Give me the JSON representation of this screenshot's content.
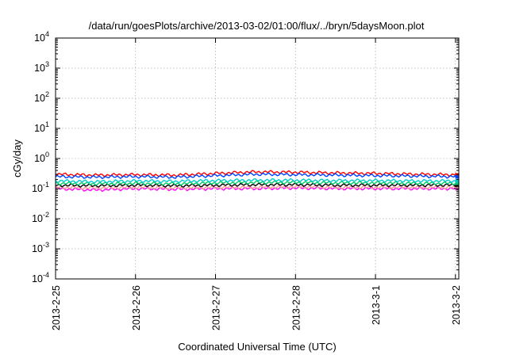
{
  "chart_data": {
    "type": "line",
    "title": "/data/run/goesPlots/archive/2013-03-02/01:00/flux/../bryn/5daysMoon.plot",
    "xlabel": "Coordinated Universal Time (UTC)",
    "ylabel": "cGy/day",
    "yscale": "log",
    "ylim": [
      0.0001,
      10000
    ],
    "xlim": [
      "2013-02-25",
      "2013-03-02T01:00"
    ],
    "grid": true,
    "legend": "none",
    "y_ticks": [
      {
        "base": "10",
        "exp": "-4",
        "value": 0.0001
      },
      {
        "base": "10",
        "exp": "-3",
        "value": 0.001
      },
      {
        "base": "10",
        "exp": "-2",
        "value": 0.01
      },
      {
        "base": "10",
        "exp": "-1",
        "value": 0.1
      },
      {
        "base": "10",
        "exp": "0",
        "value": 1
      },
      {
        "base": "10",
        "exp": "1",
        "value": 10
      },
      {
        "base": "10",
        "exp": "2",
        "value": 100
      },
      {
        "base": "10",
        "exp": "3",
        "value": 1000
      },
      {
        "base": "10",
        "exp": "4",
        "value": 10000
      }
    ],
    "x_ticks": [
      {
        "label": "2013-2-25",
        "value": "2013-02-25"
      },
      {
        "label": "2013-2-26",
        "value": "2013-02-26"
      },
      {
        "label": "2013-2-27",
        "value": "2013-02-27"
      },
      {
        "label": "2013-2-28",
        "value": "2013-02-28"
      },
      {
        "label": "2013-3-1",
        "value": "2013-03-01"
      },
      {
        "label": "2013-3-2",
        "value": "2013-03-02"
      }
    ],
    "series": [
      {
        "color": "#ff00ff",
        "x": [
          "2013-02-25",
          "2013-02-25T12:00",
          "2013-02-26",
          "2013-02-26T12:00",
          "2013-02-27",
          "2013-02-27T12:00",
          "2013-02-28",
          "2013-02-28T12:00",
          "2013-03-01",
          "2013-03-01T12:00",
          "2013-03-02",
          "2013-03-02T01:00"
        ],
        "values": [
          0.1,
          0.09,
          0.1,
          0.095,
          0.1,
          0.1,
          0.105,
          0.1,
          0.1,
          0.1,
          0.1,
          0.1
        ]
      },
      {
        "color": "#ff9999",
        "x": [
          "2013-02-25",
          "2013-02-25T12:00",
          "2013-02-26",
          "2013-02-26T12:00",
          "2013-02-27",
          "2013-02-27T12:00",
          "2013-02-28",
          "2013-02-28T12:00",
          "2013-03-01",
          "2013-03-01T12:00",
          "2013-03-02",
          "2013-03-02T01:00"
        ],
        "values": [
          0.11,
          0.105,
          0.11,
          0.105,
          0.11,
          0.11,
          0.115,
          0.11,
          0.11,
          0.11,
          0.11,
          0.11
        ]
      },
      {
        "color": "#000000",
        "x": [
          "2013-02-25",
          "2013-02-25T12:00",
          "2013-02-26",
          "2013-02-26T12:00",
          "2013-02-27",
          "2013-02-27T12:00",
          "2013-02-28",
          "2013-02-28T12:00",
          "2013-03-01",
          "2013-03-01T12:00",
          "2013-03-02",
          "2013-03-02T01:00"
        ],
        "values": [
          0.13,
          0.125,
          0.13,
          0.125,
          0.13,
          0.135,
          0.135,
          0.13,
          0.13,
          0.13,
          0.13,
          0.13
        ]
      },
      {
        "color": "#00cc66",
        "x": [
          "2013-02-25",
          "2013-02-25T12:00",
          "2013-02-26",
          "2013-02-26T12:00",
          "2013-02-27",
          "2013-02-27T12:00",
          "2013-02-28",
          "2013-02-28T12:00",
          "2013-03-01",
          "2013-03-01T12:00",
          "2013-03-02",
          "2013-03-02T01:00"
        ],
        "values": [
          0.15,
          0.145,
          0.15,
          0.145,
          0.155,
          0.16,
          0.16,
          0.155,
          0.155,
          0.15,
          0.15,
          0.15
        ]
      },
      {
        "color": "#00cccc",
        "x": [
          "2013-02-25",
          "2013-02-25T12:00",
          "2013-02-26",
          "2013-02-26T12:00",
          "2013-02-27",
          "2013-02-27T12:00",
          "2013-02-28",
          "2013-02-28T12:00",
          "2013-03-01",
          "2013-03-01T12:00",
          "2013-03-02",
          "2013-03-02T01:00"
        ],
        "values": [
          0.18,
          0.17,
          0.18,
          0.175,
          0.185,
          0.19,
          0.19,
          0.185,
          0.185,
          0.18,
          0.18,
          0.18
        ]
      },
      {
        "color": "#ff0000",
        "x": [
          "2013-02-25",
          "2013-02-25T12:00",
          "2013-02-26",
          "2013-02-26T12:00",
          "2013-02-27",
          "2013-02-27T12:00",
          "2013-02-28",
          "2013-02-28T12:00",
          "2013-03-01",
          "2013-03-01T12:00",
          "2013-03-02",
          "2013-03-02T01:00"
        ],
        "values": [
          0.3,
          0.28,
          0.29,
          0.28,
          0.32,
          0.36,
          0.35,
          0.33,
          0.32,
          0.3,
          0.29,
          0.28
        ]
      },
      {
        "color": "#0044ff",
        "x": [
          "2013-02-25",
          "2013-02-25T12:00",
          "2013-02-26",
          "2013-02-26T12:00",
          "2013-02-27",
          "2013-02-27T12:00",
          "2013-02-28",
          "2013-02-28T12:00",
          "2013-03-01",
          "2013-03-01T12:00",
          "2013-03-02",
          "2013-03-02T01:00"
        ],
        "values": [
          0.25,
          0.24,
          0.25,
          0.24,
          0.27,
          0.3,
          0.29,
          0.28,
          0.27,
          0.26,
          0.25,
          0.24
        ]
      }
    ]
  }
}
